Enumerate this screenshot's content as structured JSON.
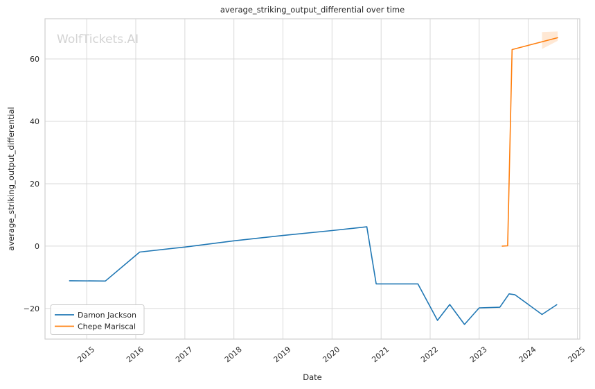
{
  "chart_data": {
    "type": "line",
    "title": "average_striking_output_differential over time",
    "xlabel": "Date",
    "ylabel": "average_striking_output_differential",
    "watermark": "WolfTickets.AI",
    "grid": true,
    "legend": {
      "position": "lower left"
    },
    "x_ticks": [
      2015,
      2016,
      2017,
      2018,
      2019,
      2020,
      2021,
      2022,
      2023,
      2024,
      2025
    ],
    "x_tick_labels": [
      "2015",
      "2016",
      "2017",
      "2018",
      "2019",
      "2020",
      "2021",
      "2022",
      "2023",
      "2024",
      "2025"
    ],
    "y_ticks": [
      -20,
      0,
      20,
      40,
      60
    ],
    "y_tick_labels": [
      "−20",
      "0",
      "20",
      "40",
      "60"
    ],
    "xlim": [
      2014.15,
      2025.05
    ],
    "ylim": [
      -29.8,
      72.9
    ],
    "colors": {
      "damon_jackson": "#1f77b4",
      "chepe_mariscal": "#ff7f0e",
      "band_fill": "#ff7f0e",
      "grid": "#d9d9d9",
      "spine": "#cfcfcf",
      "text": "#262626",
      "watermark": "#d3d3d3",
      "legend_border": "#cccccc"
    },
    "series": [
      {
        "name": "Damon Jackson",
        "color": "#1f77b4",
        "x": [
          2014.65,
          2015.38,
          2016.08,
          2017.0,
          2018.0,
          2019.0,
          2020.0,
          2020.71,
          2020.9,
          2021.75,
          2022.15,
          2022.4,
          2022.7,
          2023.0,
          2023.42,
          2023.61,
          2023.73,
          2024.28,
          2024.58
        ],
        "y": [
          -11.1,
          -11.2,
          -1.9,
          -0.3,
          1.7,
          3.4,
          5.0,
          6.2,
          -12.1,
          -12.1,
          -23.8,
          -18.7,
          -25.1,
          -19.8,
          -19.6,
          -15.3,
          -15.6,
          -21.9,
          -18.8
        ]
      },
      {
        "name": "Chepe Mariscal",
        "color": "#ff7f0e",
        "x": [
          2023.47,
          2023.58,
          2023.67,
          2024.6
        ],
        "y": [
          0.0,
          0.1,
          63.0,
          66.8
        ],
        "band": {
          "x": [
            2024.28,
            2024.6
          ],
          "lower": [
            63.2,
            65.8
          ],
          "upper": [
            68.6,
            68.8
          ],
          "opacity": 0.18
        }
      }
    ]
  }
}
